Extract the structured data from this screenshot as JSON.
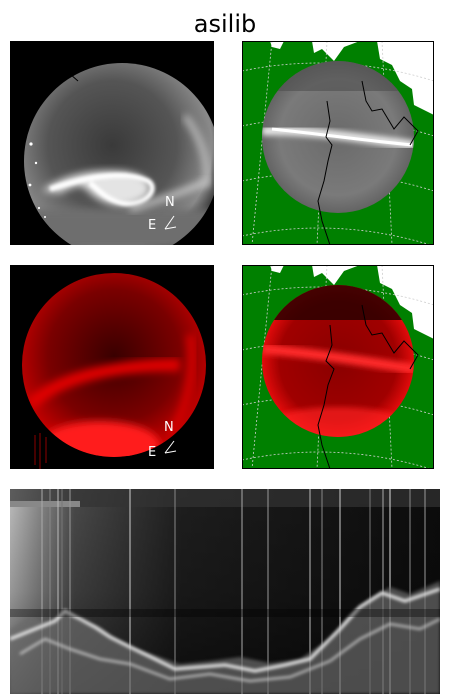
{
  "title": "asilib",
  "colors": {
    "map_land": "#008000",
    "map_ocean": "#ffffff",
    "graticule": "#c8c8c8",
    "red_channel": "#ff0000",
    "frame": "#000000"
  },
  "panels": {
    "white_light_image": {
      "compass": {
        "north": "N",
        "east": "E"
      }
    },
    "red_line_image": {
      "compass": {
        "north": "N",
        "east": "E"
      }
    },
    "white_light_map": {},
    "red_line_map": {},
    "keogram": {}
  }
}
